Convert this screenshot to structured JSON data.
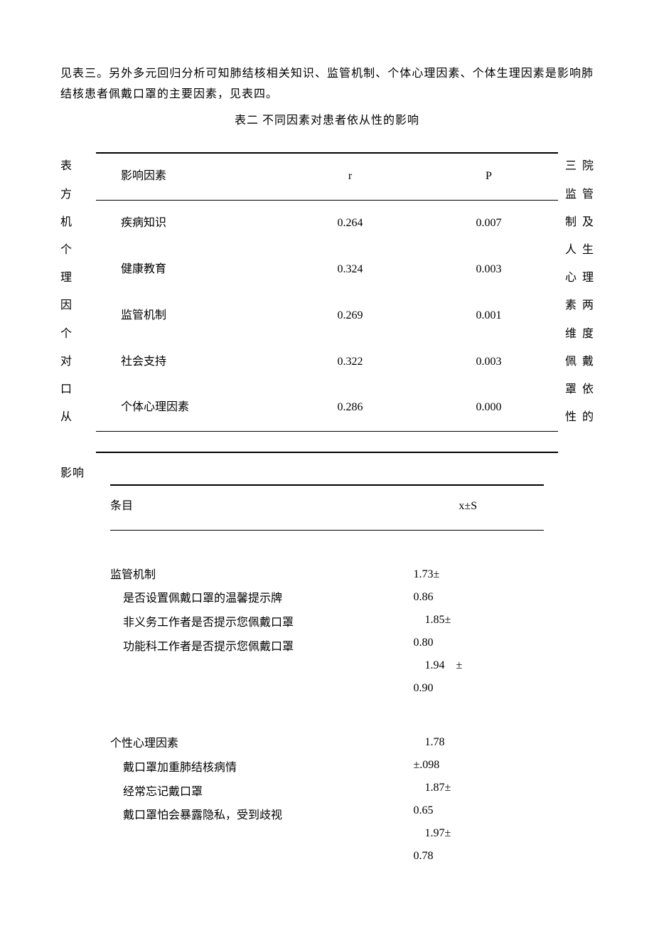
{
  "intro_text": "见表三。另外多元回归分析可知肺结核相关知识、监管机制、个体心理因素、个体生理因素是影响肺结核患者佩戴口罩的主要因素，见表四。",
  "table2_title": "表二 不同因素对患者依从性的影响",
  "table2": {
    "headers": {
      "factor": "影响因素",
      "r": "r",
      "p": "P"
    },
    "rows": [
      {
        "factor": "疾病知识",
        "r": "0.264",
        "p": "0.007"
      },
      {
        "factor": "健康教育",
        "r": "0.324",
        "p": "0.003"
      },
      {
        "factor": "监管机制",
        "r": "0.269",
        "p": "0.001"
      },
      {
        "factor": "社会支持",
        "r": "0.322",
        "p": "0.003"
      },
      {
        "factor": "个体心理因素",
        "r": "0.286",
        "p": "0.000"
      }
    ]
  },
  "wrap_left_text": "表方机个理因个对口从",
  "wrap_right_lines": [
    "三院",
    "监管",
    "制及",
    "人生",
    "心理",
    "素两",
    "维度",
    "佩戴",
    "罩依",
    "性的"
  ],
  "wrap_bottom": "影响",
  "table3": {
    "headers": {
      "item": "条目",
      "xs": "x±S"
    },
    "group1": {
      "title": "监管机制",
      "items": [
        "是否设置佩戴口罩的温馨提示牌",
        "非义务工作者是否提示您佩戴口罩",
        "功能科工作者是否提示您佩戴口罩"
      ]
    },
    "group1_values_html": "1.73±\n0.86\n　1.85±\n0.80\n　1.94　±\n0.90",
    "group2_transition": "　1.78\n±.098",
    "group2": {
      "title": "个性心理因素",
      "items": [
        "戴口罩加重肺结核病情",
        "经常忘记戴口罩",
        "戴口罩怕会暴露隐私，受到歧视"
      ]
    },
    "group2_values": "　1.87±\n0.65\n　1.97±\n0.78"
  }
}
